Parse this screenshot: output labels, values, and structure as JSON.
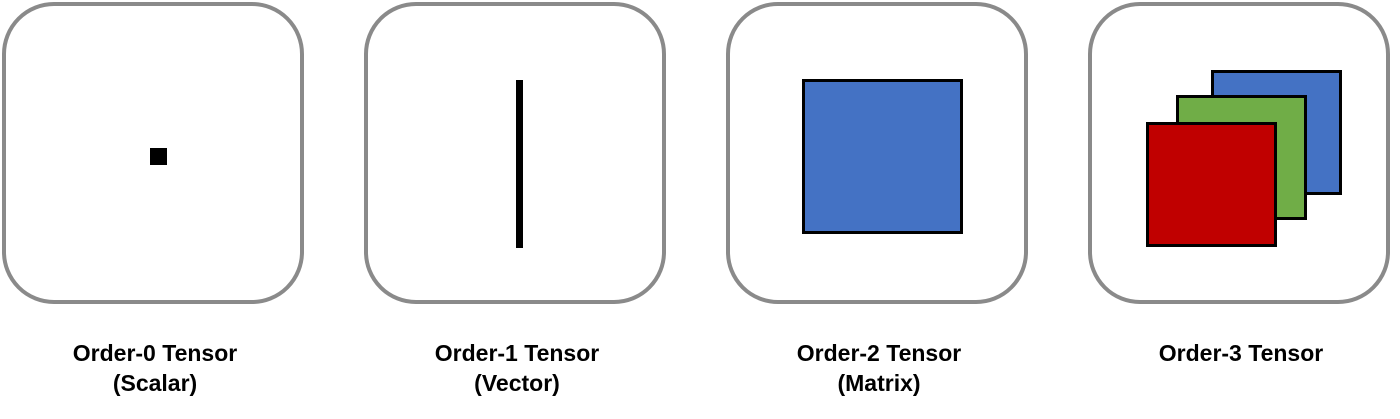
{
  "colors": {
    "panel_border": "#8a8a8a",
    "shape_fill_dark": "#000000",
    "matrix_fill": "#4472c4",
    "tensor_back": "#4472c4",
    "tensor_middle": "#70ad47",
    "tensor_front": "#c00000"
  },
  "tensors": [
    {
      "title": "Order-0 Tensor",
      "subtitle": "(Scalar)"
    },
    {
      "title": "Order-1 Tensor",
      "subtitle": "(Vector)"
    },
    {
      "title": "Order-2 Tensor",
      "subtitle": "(Matrix)"
    },
    {
      "title": "Order-3 Tensor",
      "subtitle": ""
    }
  ]
}
